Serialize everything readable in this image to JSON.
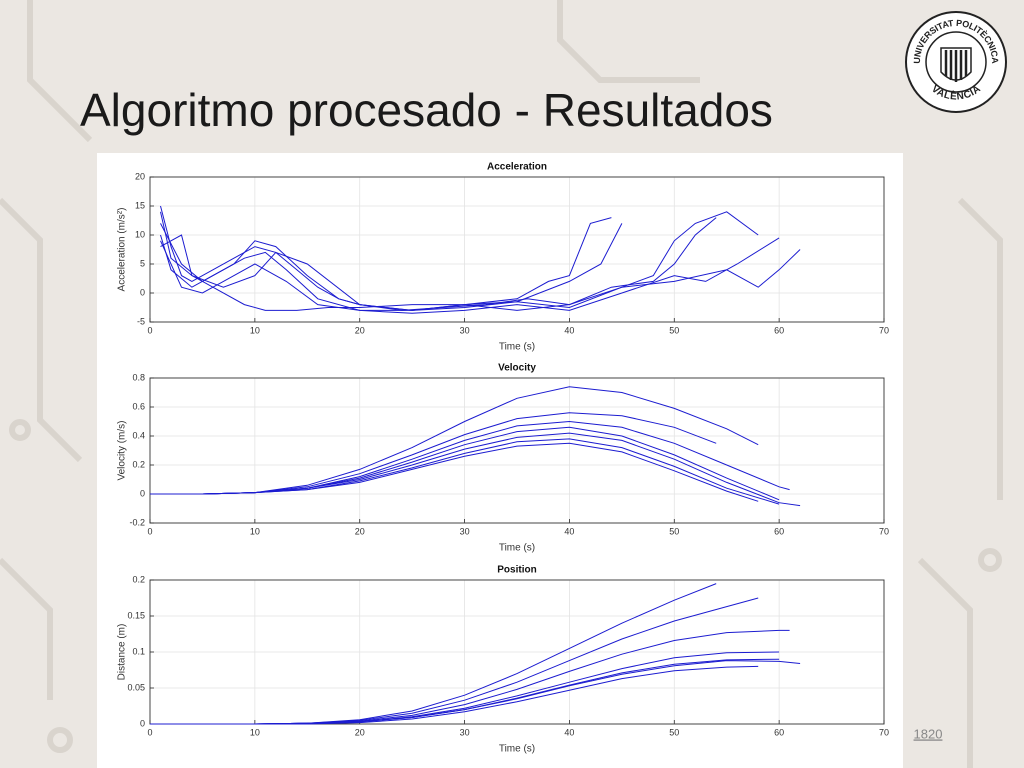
{
  "slide": {
    "title": "Algoritmo procesado - Resultados",
    "page_number": "1820"
  },
  "logo": {
    "top": "UNIVERSITAT POLITÈCNICA",
    "bottom": "VALÈNCIA"
  },
  "chart_data": [
    {
      "type": "line",
      "title": "Acceleration",
      "x_label": "Time (s)",
      "y_label": "Acceleration (m/s²)",
      "xlim": [
        0,
        70
      ],
      "xticks": [
        0,
        10,
        20,
        30,
        40,
        50,
        60,
        70
      ],
      "ylim": [
        -5,
        20
      ],
      "yticks": [
        -5,
        0,
        5,
        10,
        15,
        20
      ],
      "grid": true,
      "series": [
        {
          "color": "#1c1cd0",
          "x": [
            1,
            2,
            3,
            4,
            6,
            8,
            10,
            12,
            14,
            16,
            18,
            20,
            24,
            28,
            32,
            36,
            40,
            44,
            48,
            50,
            52,
            54
          ],
          "values": [
            15,
            8,
            3,
            2,
            4,
            6,
            8,
            7,
            4,
            1,
            -1,
            -2,
            -3,
            -2.5,
            -2,
            -1,
            -2,
            1,
            2,
            5,
            10,
            13
          ]
        },
        {
          "color": "#1c1cd0",
          "x": [
            1,
            3,
            5,
            8,
            10,
            12,
            15,
            18,
            20,
            25,
            30,
            35,
            38,
            40,
            42,
            44
          ],
          "values": [
            12,
            5,
            2,
            5,
            9,
            8,
            3,
            -1,
            -2,
            -3,
            -2,
            -1,
            2,
            3,
            12,
            13
          ]
        },
        {
          "color": "#1c1cd0",
          "x": [
            1,
            2,
            4,
            6,
            9,
            11,
            13,
            16,
            20,
            25,
            30,
            35,
            40,
            45,
            50,
            55,
            58,
            60,
            62
          ],
          "values": [
            10,
            4,
            1,
            3,
            6,
            7,
            4,
            -1,
            -3,
            -3,
            -2,
            -3,
            -2,
            1,
            2,
            4,
            1,
            4,
            7.5
          ]
        },
        {
          "color": "#1c1cd0",
          "x": [
            1,
            2,
            4,
            7,
            10,
            12,
            15,
            20,
            25,
            30,
            35,
            40,
            45,
            48,
            50,
            52,
            55,
            58
          ],
          "values": [
            14,
            6,
            3,
            1,
            3,
            7,
            5,
            -2,
            -3,
            -2.5,
            -1.5,
            -2.5,
            1,
            3,
            9,
            12,
            14,
            10
          ]
        },
        {
          "color": "#1c1cd0",
          "x": [
            1,
            3,
            5,
            7,
            10,
            13,
            16,
            20,
            25,
            30,
            35,
            40,
            45,
            50,
            53,
            56,
            60
          ],
          "values": [
            9,
            1,
            0,
            2,
            5,
            2,
            -2,
            -3,
            -3.5,
            -3,
            -2,
            -3,
            0,
            3,
            2,
            5,
            9.5
          ]
        },
        {
          "color": "#1c1cd0",
          "x": [
            1,
            3,
            4,
            6,
            9,
            11,
            14,
            17,
            20,
            25,
            30,
            35,
            40,
            43,
            45
          ],
          "values": [
            8,
            10,
            3,
            1,
            -2,
            -3,
            -3,
            -2.5,
            -2.5,
            -2,
            -2,
            -1.5,
            2,
            5,
            12
          ]
        }
      ]
    },
    {
      "type": "line",
      "title": "Velocity",
      "x_label": "Time (s)",
      "y_label": "Velocity (m/s)",
      "xlim": [
        0,
        70
      ],
      "xticks": [
        0,
        10,
        20,
        30,
        40,
        50,
        60,
        70
      ],
      "ylim": [
        -0.2,
        0.8
      ],
      "yticks": [
        -0.2,
        0,
        0.2,
        0.4,
        0.6,
        0.8
      ],
      "grid": true,
      "series": [
        {
          "color": "#1c1cd0",
          "x": [
            0,
            5,
            10,
            15,
            20,
            25,
            30,
            35,
            40,
            45,
            50,
            55,
            58
          ],
          "values": [
            0,
            0,
            0.01,
            0.06,
            0.17,
            0.32,
            0.5,
            0.66,
            0.74,
            0.7,
            0.59,
            0.45,
            0.34
          ]
        },
        {
          "color": "#1c1cd0",
          "x": [
            0,
            5,
            10,
            15,
            20,
            25,
            30,
            35,
            40,
            45,
            50,
            54
          ],
          "values": [
            0,
            0,
            0.01,
            0.05,
            0.14,
            0.27,
            0.41,
            0.52,
            0.56,
            0.54,
            0.46,
            0.35
          ]
        },
        {
          "color": "#1c1cd0",
          "x": [
            0,
            5,
            10,
            15,
            20,
            25,
            30,
            35,
            40,
            45,
            50,
            55,
            60,
            61
          ],
          "values": [
            0,
            0,
            0.01,
            0.04,
            0.12,
            0.24,
            0.37,
            0.47,
            0.5,
            0.46,
            0.35,
            0.2,
            0.05,
            0.03
          ]
        },
        {
          "color": "#1c1cd0",
          "x": [
            0,
            5,
            10,
            15,
            20,
            25,
            30,
            35,
            40,
            45,
            50,
            55,
            60
          ],
          "values": [
            0,
            0,
            0.01,
            0.04,
            0.11,
            0.22,
            0.34,
            0.43,
            0.46,
            0.4,
            0.27,
            0.11,
            -0.04
          ]
        },
        {
          "color": "#1c1cd0",
          "x": [
            0,
            5,
            10,
            15,
            20,
            25,
            30,
            35,
            40,
            45,
            50,
            55,
            60,
            62
          ],
          "values": [
            0,
            0,
            0.01,
            0.04,
            0.1,
            0.2,
            0.31,
            0.39,
            0.42,
            0.37,
            0.24,
            0.08,
            -0.06,
            -0.08
          ]
        },
        {
          "color": "#1c1cd0",
          "x": [
            0,
            5,
            10,
            15,
            20,
            25,
            30,
            35,
            40,
            45,
            50,
            55,
            60
          ],
          "values": [
            0,
            0,
            0.01,
            0.03,
            0.09,
            0.18,
            0.28,
            0.36,
            0.38,
            0.32,
            0.19,
            0.04,
            -0.07
          ]
        },
        {
          "color": "#1c1cd0",
          "x": [
            0,
            5,
            10,
            15,
            20,
            25,
            30,
            35,
            40,
            45,
            50,
            55,
            58
          ],
          "values": [
            0,
            0,
            0.01,
            0.03,
            0.08,
            0.17,
            0.26,
            0.33,
            0.35,
            0.29,
            0.16,
            0.02,
            -0.05
          ]
        }
      ]
    },
    {
      "type": "line",
      "title": "Position",
      "x_label": "Time (s)",
      "y_label": "Distance (m)",
      "xlim": [
        0,
        70
      ],
      "xticks": [
        0,
        10,
        20,
        30,
        40,
        50,
        60,
        70
      ],
      "ylim": [
        0,
        0.2
      ],
      "yticks": [
        0,
        0.05,
        0.1,
        0.15,
        0.2
      ],
      "grid": true,
      "series": [
        {
          "color": "#1c1cd0",
          "x": [
            0,
            10,
            15,
            20,
            25,
            30,
            35,
            40,
            45,
            50,
            54
          ],
          "values": [
            0,
            0,
            0.001,
            0.006,
            0.018,
            0.04,
            0.07,
            0.105,
            0.14,
            0.172,
            0.195
          ]
        },
        {
          "color": "#1c1cd0",
          "x": [
            0,
            10,
            15,
            20,
            25,
            30,
            35,
            40,
            45,
            50,
            55,
            58
          ],
          "values": [
            0,
            0,
            0.001,
            0.005,
            0.015,
            0.033,
            0.058,
            0.088,
            0.118,
            0.143,
            0.163,
            0.175
          ]
        },
        {
          "color": "#1c1cd0",
          "x": [
            0,
            10,
            15,
            20,
            25,
            30,
            35,
            40,
            45,
            50,
            55,
            60,
            61
          ],
          "values": [
            0,
            0,
            0.001,
            0.004,
            0.012,
            0.027,
            0.048,
            0.073,
            0.097,
            0.116,
            0.127,
            0.13,
            0.13
          ]
        },
        {
          "color": "#1c1cd0",
          "x": [
            0,
            10,
            15,
            20,
            25,
            30,
            35,
            40,
            45,
            50,
            55,
            60
          ],
          "values": [
            0,
            0,
            0.001,
            0.003,
            0.01,
            0.022,
            0.039,
            0.058,
            0.077,
            0.092,
            0.099,
            0.1
          ]
        },
        {
          "color": "#1c1cd0",
          "x": [
            0,
            10,
            15,
            20,
            25,
            30,
            35,
            40,
            45,
            50,
            55,
            60,
            62
          ],
          "values": [
            0,
            0,
            0.001,
            0.003,
            0.009,
            0.02,
            0.035,
            0.053,
            0.069,
            0.081,
            0.088,
            0.087,
            0.084
          ]
        },
        {
          "color": "#1c1cd0",
          "x": [
            0,
            10,
            15,
            20,
            25,
            30,
            35,
            40,
            45,
            50,
            55,
            60
          ],
          "values": [
            0,
            0,
            0.001,
            0.003,
            0.009,
            0.02,
            0.036,
            0.054,
            0.071,
            0.083,
            0.089,
            0.09
          ]
        },
        {
          "color": "#1c1cd0",
          "x": [
            0,
            10,
            15,
            20,
            25,
            30,
            35,
            40,
            45,
            50,
            55,
            58
          ],
          "values": [
            0,
            0,
            0,
            0.002,
            0.007,
            0.017,
            0.031,
            0.047,
            0.063,
            0.074,
            0.079,
            0.08
          ]
        }
      ]
    }
  ]
}
